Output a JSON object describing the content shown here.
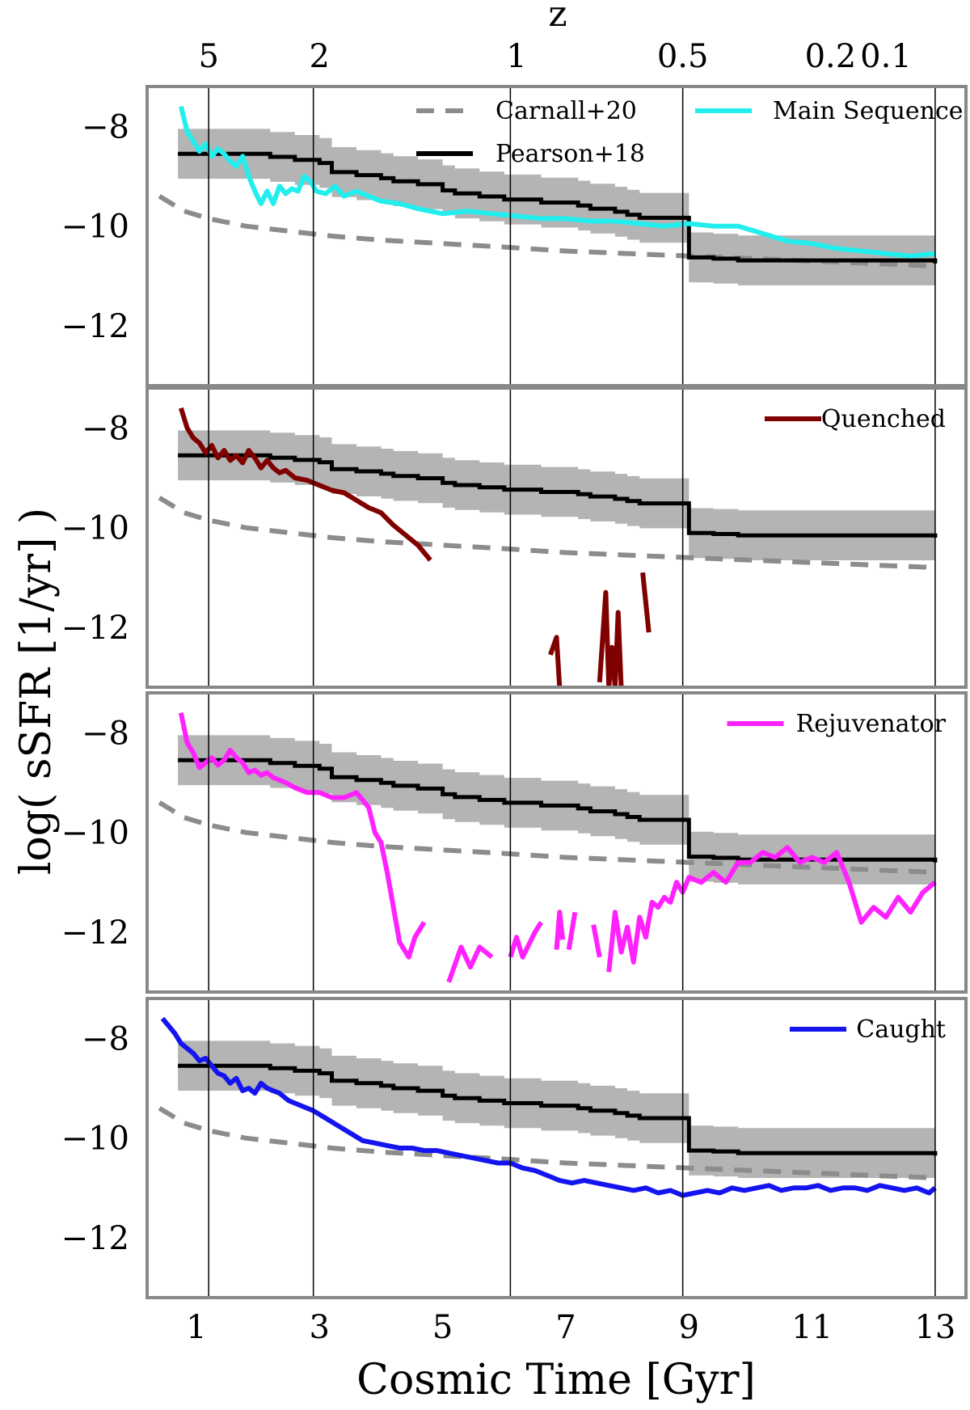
{
  "chart_data": {
    "type": "line",
    "xlabel": "Cosmic Time [Gyr]",
    "ylabel": "log( sSFR [1/yr] )",
    "top_axis_label": "z",
    "top_ticks": [
      {
        "label": "5",
        "t": 1.2
      },
      {
        "label": "2",
        "t": 3.0
      },
      {
        "label": "1",
        "t": 6.2
      },
      {
        "label": "0.5",
        "t": 8.9
      },
      {
        "label": "0.2",
        "t": 11.3
      },
      {
        "label": "0.1",
        "t": 12.2
      }
    ],
    "vertical_lines_at_gyr": [
      1.2,
      2.9,
      6.1,
      8.9,
      13.0
    ],
    "xlim": [
      0.2,
      13.5
    ],
    "ylim": [
      -13.2,
      -7.2
    ],
    "x_ticks": [
      1,
      3,
      5,
      7,
      9,
      11,
      13
    ],
    "y_ticks": [
      -8,
      -10,
      -12
    ],
    "colors": {
      "frame": "#888888",
      "band": "#b4b4b4",
      "carnall": "#8c8c8c",
      "pearson": "#000000",
      "main_sequence": "#22eeee",
      "quenched": "#800000",
      "rejuvenator": "#ff22ff",
      "caught": "#1414f0"
    },
    "common_series": {
      "carnall": {
        "name": "Carnall+20",
        "x": [
          0.4,
          0.8,
          1.2,
          1.8,
          2.5,
          3.2,
          4.0,
          5.0,
          6.0,
          7.0,
          8.0,
          9.0,
          10.0,
          11.0,
          12.0,
          13.0
        ],
        "y": [
          -9.4,
          -9.7,
          -9.85,
          -10.0,
          -10.1,
          -10.2,
          -10.28,
          -10.35,
          -10.42,
          -10.5,
          -10.55,
          -10.6,
          -10.65,
          -10.7,
          -10.75,
          -10.8
        ]
      },
      "pearson_x": [
        0.7,
        1.0,
        1.2,
        1.4,
        1.6,
        1.8,
        2.0,
        2.2,
        2.4,
        2.6,
        2.8,
        3.0,
        3.2,
        3.4,
        3.6,
        3.8,
        4.0,
        4.2,
        4.4,
        4.6,
        4.8,
        5.0,
        5.2,
        5.4,
        5.6,
        5.8,
        6.0,
        6.2,
        6.4,
        6.6,
        6.8,
        7.0,
        7.2,
        7.4,
        7.6,
        7.8,
        8.0,
        8.2,
        8.4,
        8.6,
        8.8,
        9.0,
        9.2,
        9.4,
        9.6,
        9.8,
        10.0,
        10.2,
        10.4,
        10.6,
        10.8,
        11.0,
        11.2,
        11.4,
        11.6,
        11.8,
        12.0,
        12.2,
        12.4,
        12.6,
        12.8,
        13.0
      ],
      "pearson_offsets": [
        0.0,
        0.0,
        0.0,
        0.0,
        0.0,
        0.0,
        0.0,
        0.05,
        0.05,
        0.1,
        0.1,
        0.15,
        0.3,
        0.3,
        0.35,
        0.35,
        0.4,
        0.45,
        0.45,
        0.5,
        0.5,
        0.6,
        0.65,
        0.65,
        0.7,
        0.7,
        0.75,
        0.75,
        0.75,
        0.8,
        0.8,
        0.8,
        0.85,
        0.9,
        0.9,
        0.95,
        1.0,
        1.05,
        1.05,
        1.05,
        1.05,
        1.7,
        1.7,
        1.72,
        1.72,
        1.75,
        1.75,
        1.75,
        1.75,
        1.75,
        1.75,
        1.75,
        1.75,
        1.75,
        1.75,
        1.75,
        1.75,
        1.75,
        1.75,
        1.75,
        1.75,
        1.8
      ],
      "band_halfwidth": 0.5
    },
    "panels": [
      {
        "name": "Main Sequence",
        "color": "main_sequence",
        "pearson_start": -8.55,
        "pearson_end_level": -10.75,
        "legend": [
          "Carnall+20",
          "Pearson+18",
          "Main Sequence"
        ],
        "x": [
          0.75,
          0.85,
          0.95,
          1.05,
          1.15,
          1.25,
          1.35,
          1.45,
          1.55,
          1.65,
          1.75,
          1.85,
          1.95,
          2.05,
          2.15,
          2.25,
          2.35,
          2.45,
          2.55,
          2.65,
          2.75,
          2.85,
          2.95,
          3.1,
          3.25,
          3.4,
          3.6,
          3.8,
          4.0,
          4.3,
          4.6,
          5.0,
          5.4,
          5.8,
          6.2,
          6.6,
          7.0,
          7.4,
          7.8,
          8.2,
          8.6,
          9.0,
          9.4,
          9.8,
          10.2,
          10.6,
          11.0,
          11.4,
          11.8,
          12.2,
          12.6,
          13.0
        ],
        "y": [
          -7.6,
          -8.1,
          -8.3,
          -8.5,
          -8.35,
          -8.6,
          -8.45,
          -8.55,
          -8.7,
          -8.8,
          -8.6,
          -9.0,
          -9.3,
          -9.55,
          -9.3,
          -9.55,
          -9.2,
          -9.35,
          -9.25,
          -9.3,
          -9.0,
          -9.1,
          -9.3,
          -9.35,
          -9.2,
          -9.4,
          -9.3,
          -9.4,
          -9.5,
          -9.55,
          -9.65,
          -9.75,
          -9.7,
          -9.75,
          -9.8,
          -9.85,
          -9.85,
          -9.9,
          -9.9,
          -9.95,
          -10.0,
          -9.95,
          -10.0,
          -10.0,
          -10.15,
          -10.3,
          -10.35,
          -10.45,
          -10.5,
          -10.55,
          -10.6,
          -10.55
        ]
      },
      {
        "name": "Quenched",
        "color": "quenched",
        "pearson_start": -8.55,
        "pearson_end_level": -10.2,
        "legend": [
          "Quenched"
        ],
        "segments": [
          {
            "x": [
              0.75,
              0.85,
              0.95,
              1.05,
              1.15,
              1.25,
              1.35,
              1.45,
              1.55,
              1.65,
              1.75,
              1.85,
              1.95,
              2.05,
              2.15,
              2.25,
              2.35,
              2.45,
              2.6,
              2.8,
              3.0,
              3.2,
              3.4,
              3.6,
              3.8,
              4.0,
              4.2,
              4.4,
              4.6,
              4.8
            ],
            "y": [
              -7.6,
              -8.0,
              -8.2,
              -8.3,
              -8.5,
              -8.35,
              -8.6,
              -8.45,
              -8.65,
              -8.55,
              -8.7,
              -8.45,
              -8.6,
              -8.8,
              -8.65,
              -8.8,
              -8.9,
              -8.85,
              -9.0,
              -9.05,
              -9.15,
              -9.25,
              -9.3,
              -9.45,
              -9.6,
              -9.7,
              -9.95,
              -10.15,
              -10.35,
              -10.65
            ]
          },
          {
            "x": [
              6.75,
              6.85,
              6.9
            ],
            "y": [
              -12.55,
              -12.2,
              -13.2
            ]
          },
          {
            "x": [
              7.55,
              7.65,
              7.7,
              7.75,
              7.8,
              7.85,
              7.9
            ],
            "y": [
              -13.1,
              -11.3,
              -13.2,
              -12.4,
              -13.2,
              -11.7,
              -13.2
            ]
          },
          {
            "x": [
              8.25,
              8.35
            ],
            "y": [
              -10.9,
              -12.1
            ]
          }
        ]
      },
      {
        "name": "Rejuvenator",
        "color": "rejuvenator",
        "pearson_start": -8.55,
        "pearson_end_level": -10.6,
        "legend": [
          "Rejuvenator"
        ],
        "segments": [
          {
            "x": [
              0.75,
              0.85,
              0.95,
              1.05,
              1.15,
              1.25,
              1.35,
              1.45,
              1.55,
              1.65,
              1.75,
              1.85,
              1.95,
              2.05,
              2.15,
              2.25,
              2.35,
              2.45,
              2.6,
              2.8,
              3.0,
              3.2,
              3.4,
              3.6,
              3.8,
              3.9,
              4.0,
              4.1,
              4.2,
              4.3,
              4.45,
              4.55,
              4.7
            ],
            "y": [
              -7.6,
              -8.2,
              -8.4,
              -8.7,
              -8.6,
              -8.5,
              -8.65,
              -8.55,
              -8.35,
              -8.5,
              -8.6,
              -8.8,
              -8.75,
              -8.85,
              -8.8,
              -8.9,
              -8.95,
              -9.0,
              -9.1,
              -9.2,
              -9.2,
              -9.3,
              -9.3,
              -9.2,
              -9.5,
              -10.0,
              -10.2,
              -10.8,
              -11.5,
              -12.2,
              -12.5,
              -12.1,
              -11.8
            ]
          },
          {
            "x": [
              5.1,
              5.3,
              5.45,
              5.6,
              5.8
            ],
            "y": [
              -13.0,
              -12.3,
              -12.7,
              -12.3,
              -12.5
            ]
          },
          {
            "x": [
              6.1,
              6.2,
              6.3,
              6.5,
              6.6
            ],
            "y": [
              -12.5,
              -12.1,
              -12.5,
              -12.0,
              -11.8
            ]
          },
          {
            "x": [
              6.85,
              6.9,
              6.95
            ],
            "y": [
              -12.35,
              -11.6,
              -12.15
            ]
          },
          {
            "x": [
              7.05,
              7.15
            ],
            "y": [
              -12.35,
              -11.6
            ]
          },
          {
            "x": [
              7.45,
              7.55
            ],
            "y": [
              -11.85,
              -12.5
            ]
          },
          {
            "x": [
              7.7,
              7.8,
              7.9,
              8.0,
              8.1,
              8.2,
              8.3,
              8.4,
              8.5,
              8.6,
              8.7,
              8.8,
              8.9,
              9.0,
              9.2,
              9.4,
              9.6,
              9.8,
              10.0,
              10.2,
              10.4,
              10.6,
              10.8,
              11.0,
              11.2,
              11.4,
              11.6,
              11.8,
              12.0,
              12.2,
              12.4,
              12.6,
              12.8,
              13.0
            ],
            "y": [
              -12.8,
              -11.6,
              -12.4,
              -11.9,
              -12.6,
              -11.7,
              -12.1,
              -11.4,
              -11.5,
              -11.3,
              -11.4,
              -11.0,
              -11.2,
              -10.9,
              -11.0,
              -10.8,
              -11.0,
              -10.6,
              -10.6,
              -10.4,
              -10.5,
              -10.3,
              -10.6,
              -10.5,
              -10.6,
              -10.4,
              -11.0,
              -11.8,
              -11.5,
              -11.7,
              -11.3,
              -11.6,
              -11.2,
              -11.0
            ]
          }
        ]
      },
      {
        "name": "Caught",
        "color": "caught",
        "pearson_start": -8.55,
        "pearson_end_level": -10.35,
        "legend": [
          "Caught"
        ],
        "x": [
          0.45,
          0.55,
          0.65,
          0.75,
          0.85,
          0.95,
          1.05,
          1.15,
          1.25,
          1.35,
          1.45,
          1.55,
          1.65,
          1.75,
          1.85,
          1.95,
          2.05,
          2.15,
          2.25,
          2.35,
          2.5,
          2.7,
          2.9,
          3.1,
          3.3,
          3.5,
          3.7,
          3.9,
          4.1,
          4.3,
          4.5,
          4.7,
          4.9,
          5.1,
          5.3,
          5.5,
          5.7,
          5.9,
          6.1,
          6.3,
          6.5,
          6.7,
          6.9,
          7.1,
          7.3,
          7.5,
          7.7,
          7.9,
          8.1,
          8.3,
          8.5,
          8.7,
          8.9,
          9.1,
          9.3,
          9.5,
          9.7,
          9.9,
          10.1,
          10.3,
          10.5,
          10.7,
          10.9,
          11.1,
          11.3,
          11.5,
          11.7,
          11.9,
          12.1,
          12.3,
          12.5,
          12.7,
          12.9,
          13.0
        ],
        "y": [
          -7.6,
          -7.75,
          -7.9,
          -8.1,
          -8.2,
          -8.3,
          -8.45,
          -8.4,
          -8.55,
          -8.7,
          -8.75,
          -8.9,
          -8.8,
          -9.05,
          -9.0,
          -9.1,
          -8.9,
          -9.0,
          -9.05,
          -9.1,
          -9.25,
          -9.35,
          -9.45,
          -9.6,
          -9.75,
          -9.9,
          -10.05,
          -10.1,
          -10.15,
          -10.2,
          -10.2,
          -10.25,
          -10.25,
          -10.3,
          -10.35,
          -10.4,
          -10.45,
          -10.5,
          -10.5,
          -10.6,
          -10.65,
          -10.75,
          -10.85,
          -10.9,
          -10.85,
          -10.9,
          -10.95,
          -11.0,
          -11.05,
          -11.0,
          -11.1,
          -11.05,
          -11.15,
          -11.1,
          -11.05,
          -11.1,
          -11.0,
          -11.05,
          -11.0,
          -10.95,
          -11.05,
          -11.0,
          -11.0,
          -10.95,
          -11.05,
          -11.0,
          -11.0,
          -11.05,
          -10.95,
          -11.0,
          -11.05,
          -11.0,
          -11.1,
          -11.0
        ]
      }
    ]
  }
}
